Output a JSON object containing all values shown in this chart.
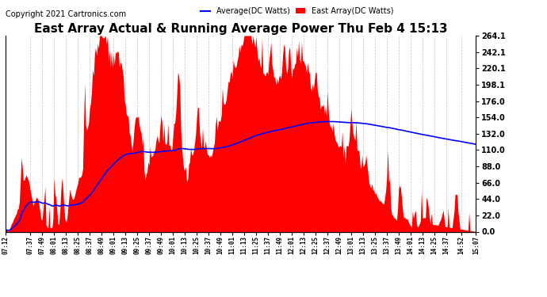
{
  "title": "East Array Actual & Running Average Power Thu Feb 4 15:13",
  "copyright": "Copyright 2021 Cartronics.com",
  "yticks": [
    0.0,
    22.0,
    44.0,
    66.0,
    88.0,
    110.0,
    132.0,
    154.0,
    176.0,
    198.1,
    220.1,
    242.1,
    264.1
  ],
  "ymin": 0.0,
  "ymax": 264.1,
  "legend_avg_label": "Average(DC Watts)",
  "legend_east_label": "East Array(DC Watts)",
  "legend_avg_color": "blue",
  "legend_east_color": "red",
  "area_color": "red",
  "line_color": "blue",
  "background_color": "#ffffff",
  "grid_color": "#aaaaaa",
  "title_fontsize": 11,
  "copyright_fontsize": 7,
  "time_labels": [
    "07:12",
    "07:37",
    "07:49",
    "08:01",
    "08:13",
    "08:25",
    "08:37",
    "08:49",
    "09:01",
    "09:13",
    "09:25",
    "09:37",
    "09:49",
    "10:01",
    "10:13",
    "10:25",
    "10:37",
    "10:49",
    "11:01",
    "11:13",
    "11:25",
    "11:37",
    "11:49",
    "12:01",
    "12:13",
    "12:25",
    "12:37",
    "12:49",
    "13:01",
    "13:13",
    "13:25",
    "13:37",
    "13:49",
    "14:01",
    "14:13",
    "14:25",
    "14:37",
    "14:52",
    "15:07"
  ]
}
